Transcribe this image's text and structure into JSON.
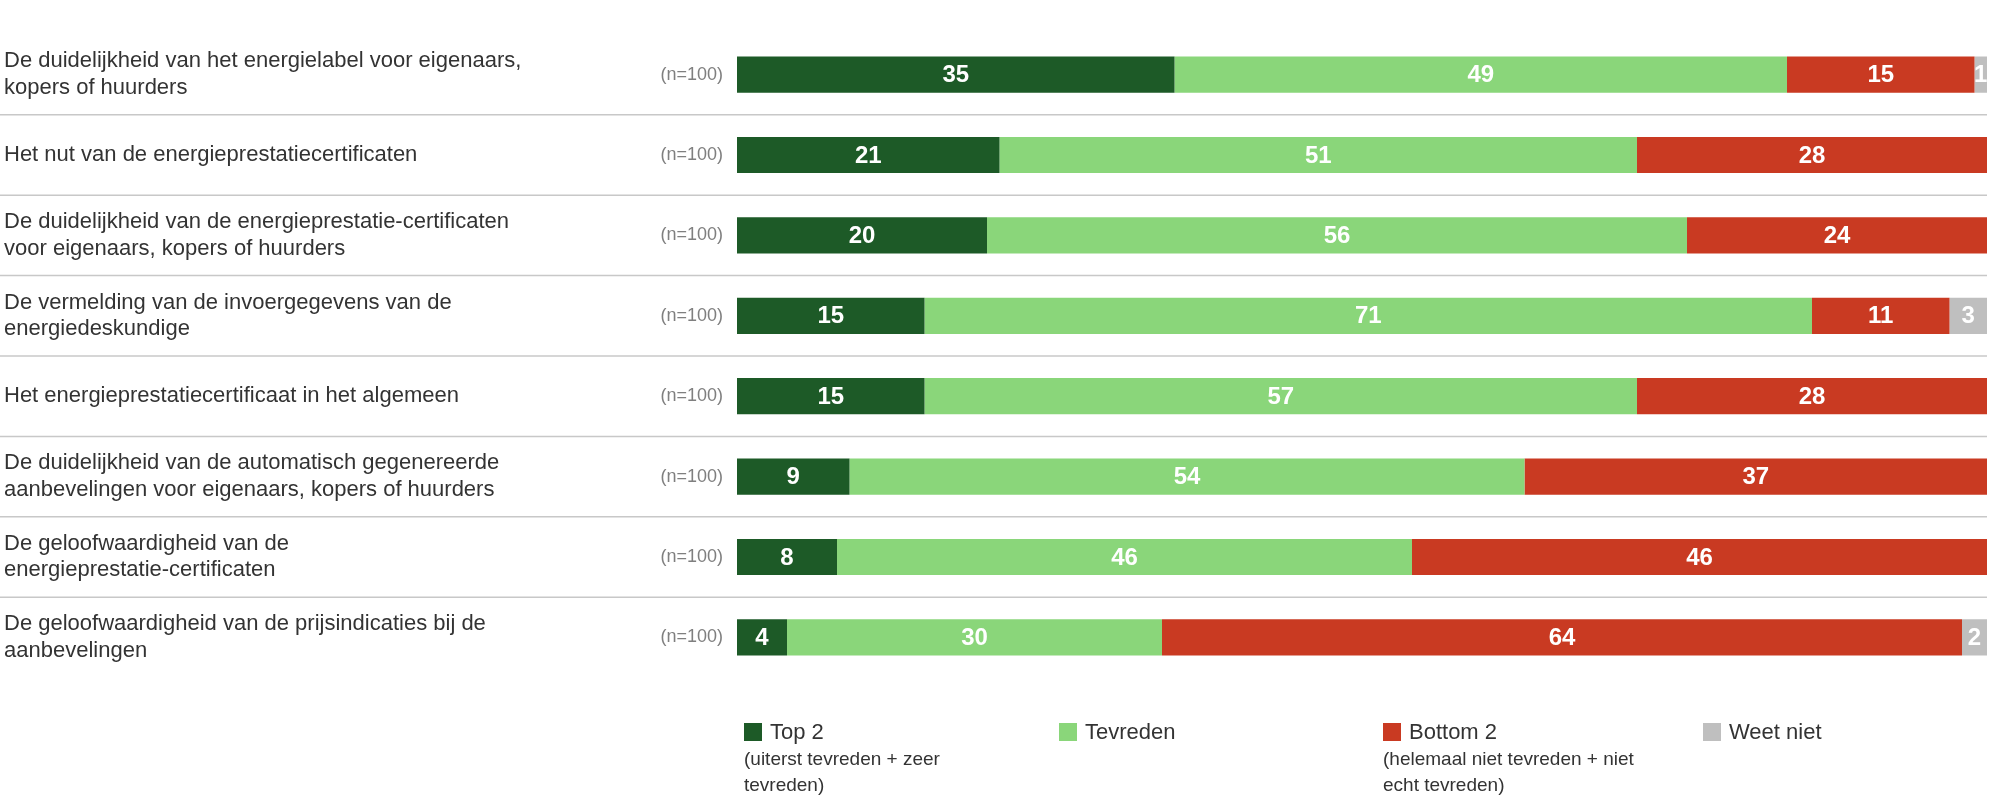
{
  "chart_data": {
    "type": "bar",
    "orientation": "horizontal",
    "stacked": true,
    "data_labels": true,
    "grid": "y",
    "legend": "bottom",
    "categories": [
      "De duidelijkheid van het energielabel voor eigenaars, kopers of huurders",
      "Het nut van de energieprestatiecertificaten",
      "De duidelijkheid van de energieprestatie-certificaten voor eigenaars, kopers of huurders",
      "De vermelding van de invoergegevens van de energiedeskundige",
      "Het energieprestatiecertificaat in het algemeen",
      "De duidelijkheid van de automatisch gegenereerde aanbevelingen voor eigenaars, kopers of huurders",
      "De geloofwaardigheid van de energieprestatie-certificaten",
      "De geloofwaardigheid van de prijsindicaties bij de aanbevelingen"
    ],
    "series": [
      {
        "name": "Top 2 (uiterst tevreden + zeer tevreden)",
        "color": "#1d5a27",
        "values": [
          35,
          21,
          20,
          15,
          15,
          9,
          8,
          4
        ]
      },
      {
        "name": "Tevreden",
        "color": "#8ad67a",
        "values": [
          49,
          51,
          56,
          71,
          57,
          54,
          46,
          30
        ]
      },
      {
        "name": "Bottom 2 (helemaal niet tevreden + niet echt tevreden)",
        "color": "#c93a22",
        "values": [
          15,
          28,
          24,
          11,
          28,
          37,
          46,
          64
        ]
      },
      {
        "name": "Weet niet",
        "color": "#bfbfbf",
        "values": [
          1,
          null,
          null,
          3,
          null,
          null,
          null,
          2
        ]
      }
    ],
    "annotations": [
      "(n=100)",
      "(n=100)",
      "(n=100)",
      "(n=100)",
      "(n=100)",
      "(n=100)",
      "(n=100)",
      "(n=100)"
    ]
  }
}
